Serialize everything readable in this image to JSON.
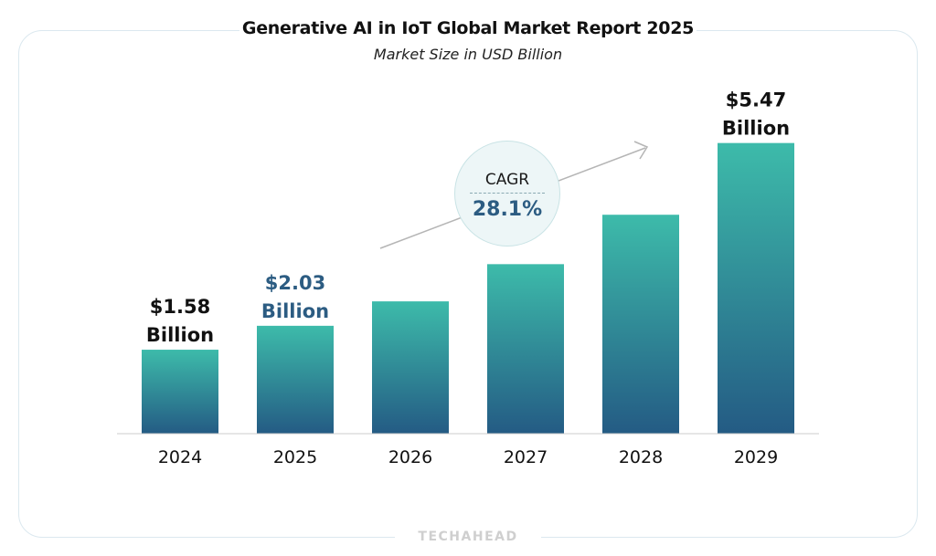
{
  "chart_data": {
    "type": "bar",
    "title": "Generative AI in IoT Global Market Report 2025",
    "subtitle": "Market Size in USD Billion",
    "categories": [
      "2024",
      "2025",
      "2026",
      "2027",
      "2028",
      "2029"
    ],
    "values": [
      1.58,
      2.03,
      2.49,
      3.19,
      4.12,
      5.47
    ],
    "data_labels": [
      {
        "index": 0,
        "line1": "$1.58",
        "line2": "Billion",
        "color": "#111111"
      },
      {
        "index": 1,
        "line1": "$2.03",
        "line2": "Billion",
        "color": "#2c5c82"
      },
      {
        "index": 5,
        "line1": "$5.47",
        "line2": "Billion",
        "color": "#111111"
      }
    ],
    "ylim": [
      0,
      6
    ],
    "xlabel": "",
    "ylabel": "",
    "grid": false,
    "colors": {
      "bar_top": "#3dbbaa",
      "bar_bottom": "#245b84",
      "axis": "#cccccc",
      "arrow": "#b5b5b5"
    }
  },
  "cagr": {
    "label": "CAGR",
    "value": "28.1%"
  },
  "brand": "TECHAHEAD"
}
